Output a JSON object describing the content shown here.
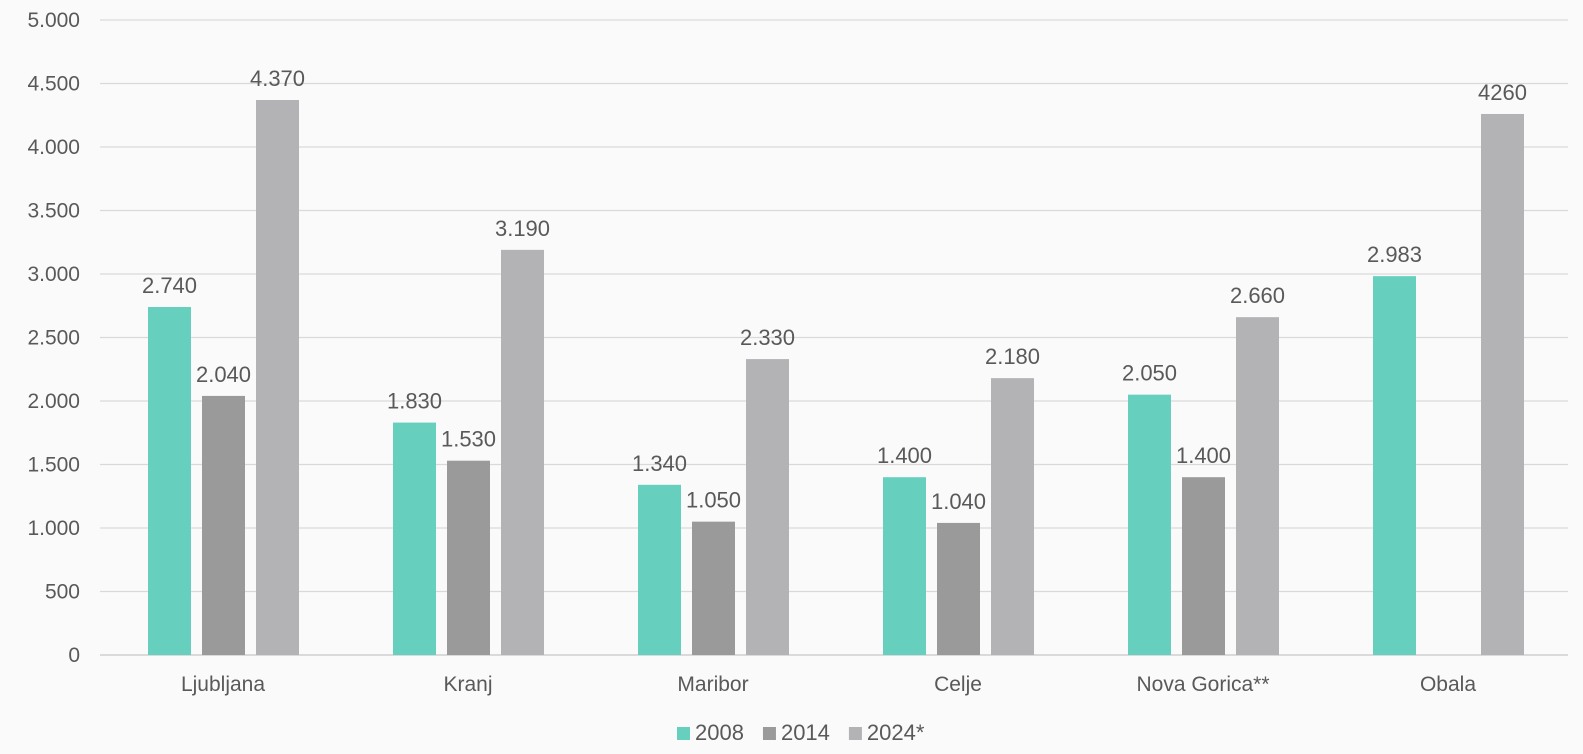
{
  "chart_data": {
    "type": "bar",
    "title": "",
    "xlabel": "",
    "ylabel": "",
    "categories": [
      "Ljubljana",
      "Kranj",
      "Maribor",
      "Celje",
      "Nova Gorica**",
      "Obala"
    ],
    "series": [
      {
        "name": "2008",
        "color": "#66cfbe",
        "values": [
          2740,
          1830,
          1340,
          1400,
          2050,
          2983
        ],
        "labels": [
          "2.740",
          "1.830",
          "1.340",
          "1.400",
          "2.050",
          "2.983"
        ]
      },
      {
        "name": "2014",
        "color": "#9a9a9a",
        "values": [
          2040,
          1530,
          1050,
          1040,
          1400,
          null
        ],
        "labels": [
          "2.040",
          "1.530",
          "1.050",
          "1.040",
          "1.400",
          null
        ]
      },
      {
        "name": "2024*",
        "color": "#b3b2b5",
        "values": [
          4370,
          3190,
          2330,
          2180,
          2660,
          4260
        ],
        "labels": [
          "4.370",
          "3.190",
          "2.330",
          "2.180",
          "2.660",
          "4260"
        ]
      }
    ],
    "ylim": [
      0,
      5000
    ],
    "yticks": [
      0,
      500,
      1000,
      1500,
      2000,
      2500,
      3000,
      3500,
      4000,
      4500,
      5000
    ],
    "ytick_labels": [
      "0",
      "500",
      "1.000",
      "1.500",
      "2.000",
      "2.500",
      "3.000",
      "3.500",
      "4.000",
      "4.500",
      "5.000"
    ],
    "grid": true,
    "legend_position": "bottom-center"
  }
}
